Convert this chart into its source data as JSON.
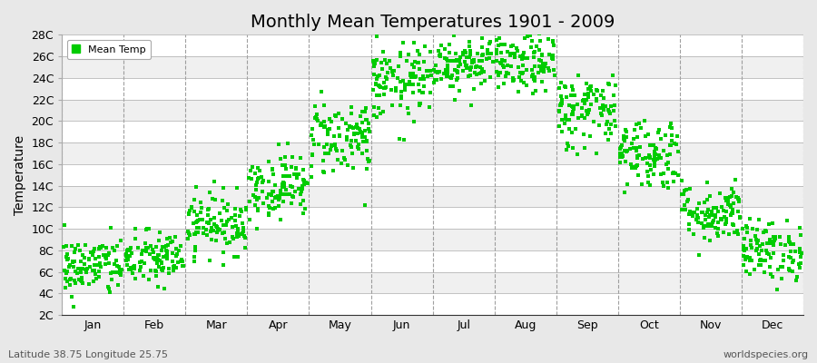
{
  "title": "Monthly Mean Temperatures 1901 - 2009",
  "ylabel": "Temperature",
  "subtitle": "Latitude 38.75 Longitude 25.75",
  "watermark": "worldspecies.org",
  "ytick_labels": [
    "2C",
    "4C",
    "6C",
    "8C",
    "10C",
    "12C",
    "14C",
    "16C",
    "18C",
    "20C",
    "22C",
    "24C",
    "26C",
    "28C"
  ],
  "ytick_values": [
    2,
    4,
    6,
    8,
    10,
    12,
    14,
    16,
    18,
    20,
    22,
    24,
    26,
    28
  ],
  "ylim": [
    2,
    28
  ],
  "month_names": [
    "Jan",
    "Feb",
    "Mar",
    "Apr",
    "May",
    "Jun",
    "Jul",
    "Aug",
    "Sep",
    "Oct",
    "Nov",
    "Dec"
  ],
  "month_means": [
    6.5,
    7.2,
    10.5,
    14.0,
    18.5,
    23.5,
    25.5,
    25.3,
    21.0,
    17.0,
    11.5,
    8.0
  ],
  "month_stds": [
    1.4,
    1.3,
    1.4,
    1.5,
    1.8,
    1.8,
    1.4,
    1.4,
    1.8,
    1.7,
    1.4,
    1.4
  ],
  "n_years": 109,
  "scatter_color": "#00cc00",
  "background_color": "#e8e8e8",
  "plot_bg_even": "#f0f0f0",
  "plot_bg_odd": "#ffffff",
  "legend_label": "Mean Temp",
  "marker_size": 5,
  "title_fontsize": 14,
  "axis_fontsize": 9,
  "label_fontsize": 10,
  "seed": 42
}
